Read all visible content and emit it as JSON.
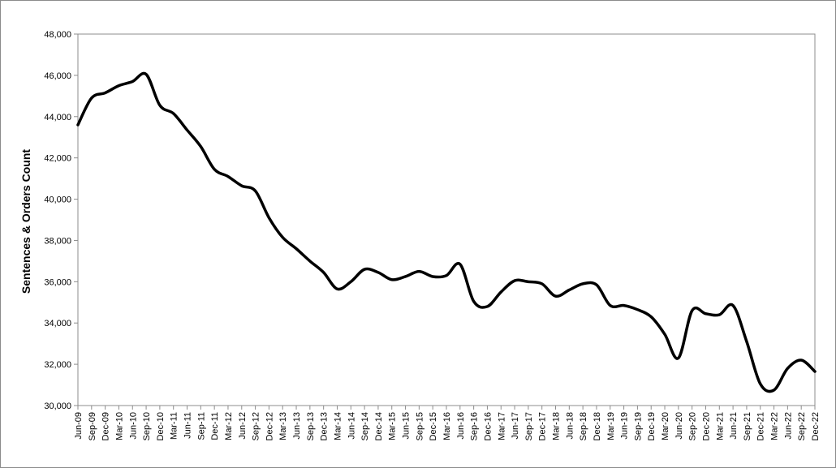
{
  "chart_data": {
    "type": "line",
    "title": "",
    "xlabel": "",
    "ylabel": "Sentences & Orders Count",
    "ylim": [
      30000,
      48000
    ],
    "yticks": [
      30000,
      32000,
      34000,
      36000,
      38000,
      40000,
      42000,
      44000,
      46000,
      48000
    ],
    "ytick_labels": [
      "30,000",
      "32,000",
      "34,000",
      "36,000",
      "38,000",
      "40,000",
      "42,000",
      "44,000",
      "46,000",
      "48,000"
    ],
    "grid": false,
    "legend": "none",
    "line_color": "#000000",
    "categories": [
      "Jun-09",
      "Sep-09",
      "Dec-09",
      "Mar-10",
      "Jun-10",
      "Sep-10",
      "Dec-10",
      "Mar-11",
      "Jun-11",
      "Sep-11",
      "Dec-11",
      "Mar-12",
      "Jun-12",
      "Sep-12",
      "Dec-12",
      "Mar-13",
      "Jun-13",
      "Sep-13",
      "Dec-13",
      "Mar-14",
      "Jun-14",
      "Sep-14",
      "Dec-14",
      "Mar-15",
      "Jun-15",
      "Sep-15",
      "Dec-15",
      "Mar-16",
      "Jun-16",
      "Sep-16",
      "Dec-16",
      "Mar-17",
      "Jun-17",
      "Sep-17",
      "Dec-17",
      "Mar-18",
      "Jun-18",
      "Sep-18",
      "Dec-18",
      "Mar-19",
      "Jun-19",
      "Sep-19",
      "Dec-19",
      "Mar-20",
      "Jun-20",
      "Sep-20",
      "Dec-20",
      "Mar-21",
      "Jun-21",
      "Sep-21",
      "Dec-21",
      "Mar-22",
      "Jun-22",
      "Sep-22",
      "Dec-22"
    ],
    "series": [
      {
        "values": [
          43600,
          44900,
          45150,
          45500,
          45700,
          46050,
          44550,
          44150,
          43350,
          42550,
          41450,
          41100,
          40650,
          40400,
          39100,
          38150,
          37600,
          37000,
          36450,
          35650,
          36000,
          36600,
          36450,
          36100,
          36250,
          36500,
          36250,
          36300,
          36850,
          35050,
          34800,
          35500,
          36050,
          36000,
          35900,
          35300,
          35600,
          35900,
          35850,
          34850,
          34850,
          34650,
          34300,
          33450,
          32300,
          34600,
          34450,
          34400,
          34850,
          33100,
          31050,
          30750,
          31800,
          32200,
          31650
        ]
      }
    ]
  }
}
